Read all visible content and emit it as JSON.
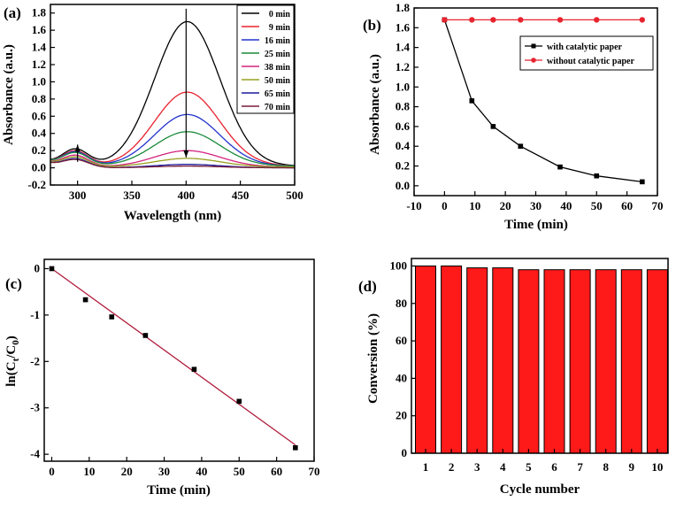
{
  "chart_data": [
    {
      "panel": "(a)",
      "type": "line",
      "xlabel": "Wavelength (nm)",
      "ylabel": "Absorbance (a.u.)",
      "xlim": [
        275,
        500
      ],
      "ylim": [
        -0.2,
        1.9
      ],
      "xticks": [
        300,
        350,
        400,
        450,
        500
      ],
      "yticks": [
        -0.2,
        0.0,
        0.2,
        0.4,
        0.6,
        0.8,
        1.0,
        1.2,
        1.4,
        1.6,
        1.8
      ],
      "legend_position": "top-right",
      "series": [
        {
          "name": "0 min",
          "color": "#000000",
          "peak": 1.68,
          "short_peak": 0.19,
          "baseline": 0.02
        },
        {
          "name": "9 min",
          "color": "#e8232f",
          "peak": 0.86,
          "short_peak": 0.17,
          "baseline": 0.02
        },
        {
          "name": "16 min",
          "color": "#2233cc",
          "peak": 0.6,
          "short_peak": 0.16,
          "baseline": 0.02
        },
        {
          "name": "25 min",
          "color": "#1a8a3a",
          "peak": 0.4,
          "short_peak": 0.15,
          "baseline": 0.02
        },
        {
          "name": "38 min",
          "color": "#d4237f",
          "peak": 0.19,
          "short_peak": 0.13,
          "baseline": 0.01
        },
        {
          "name": "50 min",
          "color": "#98a020",
          "peak": 0.1,
          "short_peak": 0.11,
          "baseline": 0.01
        },
        {
          "name": "65 min",
          "color": "#1c1c9c",
          "peak": 0.04,
          "short_peak": 0.1,
          "baseline": 0.0
        },
        {
          "name": "70 min",
          "color": "#7a1f3a",
          "peak": 0.02,
          "short_peak": 0.09,
          "baseline": 0.0
        }
      ],
      "annotations": [
        {
          "type": "arrow",
          "direction": "up",
          "x": 300,
          "from": 0.07,
          "to": 0.27
        },
        {
          "type": "arrow",
          "direction": "down",
          "x": 400,
          "from": 1.85,
          "to": 0.12
        }
      ]
    },
    {
      "panel": "(b)",
      "type": "line",
      "xlabel": "Time (min)",
      "ylabel": "Absorbance (a.u.)",
      "xlim": [
        -10,
        70
      ],
      "ylim": [
        -0.1,
        1.8
      ],
      "xticks": [
        -10,
        0,
        10,
        20,
        30,
        40,
        50,
        60,
        70
      ],
      "yticks": [
        0.0,
        0.2,
        0.4,
        0.6,
        0.8,
        1.0,
        1.2,
        1.4,
        1.6,
        1.8
      ],
      "legend_position": "top-right",
      "series": [
        {
          "name": "with catalytic paper",
          "color": "#000000",
          "marker": "square",
          "x": [
            0,
            9,
            16,
            25,
            38,
            50,
            65
          ],
          "values": [
            1.68,
            0.86,
            0.6,
            0.4,
            0.19,
            0.1,
            0.04
          ]
        },
        {
          "name": "without catalytic paper",
          "color": "#e8232f",
          "marker": "circle",
          "x": [
            0,
            9,
            16,
            25,
            38,
            50,
            65
          ],
          "values": [
            1.68,
            1.68,
            1.68,
            1.68,
            1.68,
            1.68,
            1.68
          ]
        }
      ]
    },
    {
      "panel": "(c)",
      "type": "scatter",
      "xlabel": "Time (min)",
      "ylabel_parts": [
        "ln(C",
        "t",
        "/C",
        "0",
        ")"
      ],
      "xlim": [
        -2,
        70
      ],
      "ylim": [
        -4.15,
        0.2
      ],
      "xticks": [
        0,
        10,
        20,
        30,
        40,
        50,
        60,
        70
      ],
      "yticks": [
        0,
        -1,
        -2,
        -3,
        -4
      ],
      "ytick_labels": [
        "0",
        "-1",
        "-2",
        "-3",
        "-4"
      ],
      "points": {
        "x": [
          0,
          9,
          16,
          25,
          38,
          50,
          65
        ],
        "y": [
          0.0,
          -0.67,
          -1.04,
          -1.44,
          -2.17,
          -2.86,
          -3.86
        ]
      },
      "fit_line": {
        "x": [
          0,
          65
        ],
        "y": [
          0.0,
          -3.8
        ],
        "color": "#b01e3c"
      }
    },
    {
      "panel": "(d)",
      "type": "bar",
      "xlabel": "Cycle number",
      "ylabel": "Conversion (%)",
      "ylim": [
        0,
        104
      ],
      "yticks": [
        0,
        20,
        40,
        60,
        80,
        100
      ],
      "categories": [
        "1",
        "2",
        "3",
        "4",
        "5",
        "6",
        "7",
        "8",
        "9",
        "10"
      ],
      "values": [
        100,
        100,
        99,
        99,
        98,
        98,
        98,
        98,
        98,
        98
      ],
      "bar_color": "#ff1a1a"
    }
  ]
}
